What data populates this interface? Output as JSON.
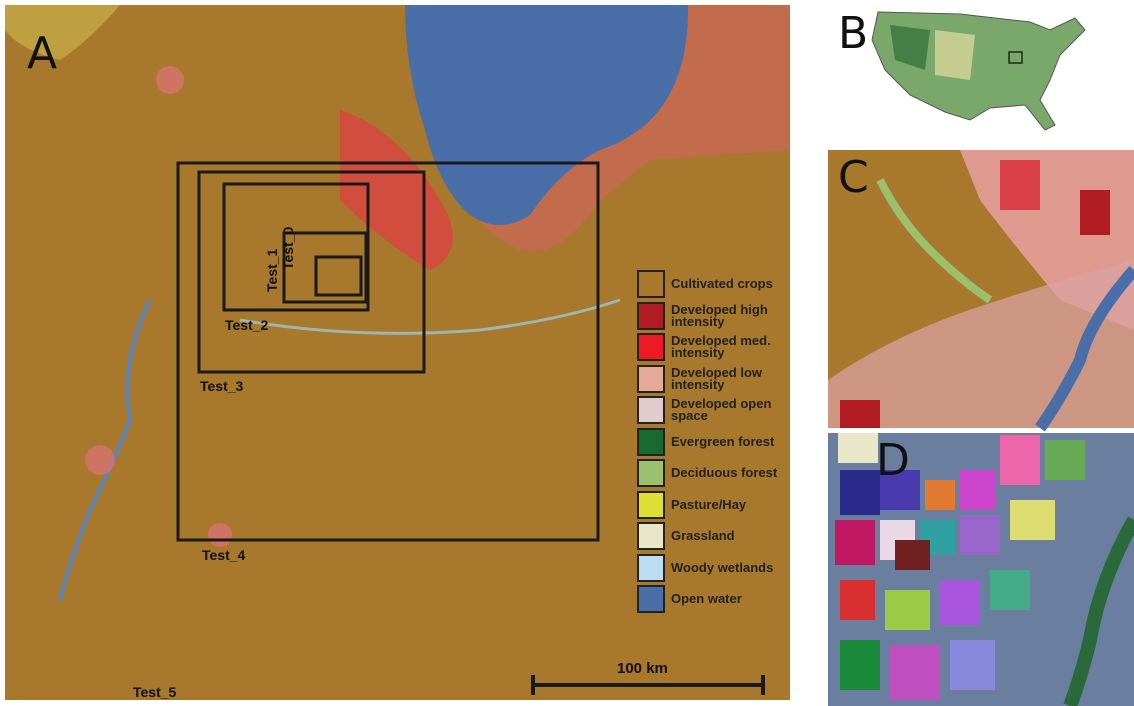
{
  "panels": [
    "A",
    "B",
    "C",
    "D"
  ],
  "tests": [
    "Test_0",
    "Test_1",
    "Test_2",
    "Test_3",
    "Test_4",
    "Test_5"
  ],
  "legend": [
    {
      "label": "Cultivated crops",
      "color": "#a8782c"
    },
    {
      "label": "Developed high intensity",
      "color": "#b01c22"
    },
    {
      "label": "Developed med. intensity",
      "color": "#ed1c24"
    },
    {
      "label": "Developed low intensity",
      "color": "#e6a898"
    },
    {
      "label": "Developed open space",
      "color": "#e0cccc"
    },
    {
      "label": "Evergreen forest",
      "color": "#1a6a30"
    },
    {
      "label": "Deciduous forest",
      "color": "#9cbf6e"
    },
    {
      "label": "Pasture/Hay",
      "color": "#dde034"
    },
    {
      "label": "Grassland",
      "color": "#e8e8c8"
    },
    {
      "label": "Woody wetlands",
      "color": "#bcdcf0"
    },
    {
      "label": "Open water",
      "color": "#4a6ea8"
    }
  ],
  "scale_bar": "100 km"
}
